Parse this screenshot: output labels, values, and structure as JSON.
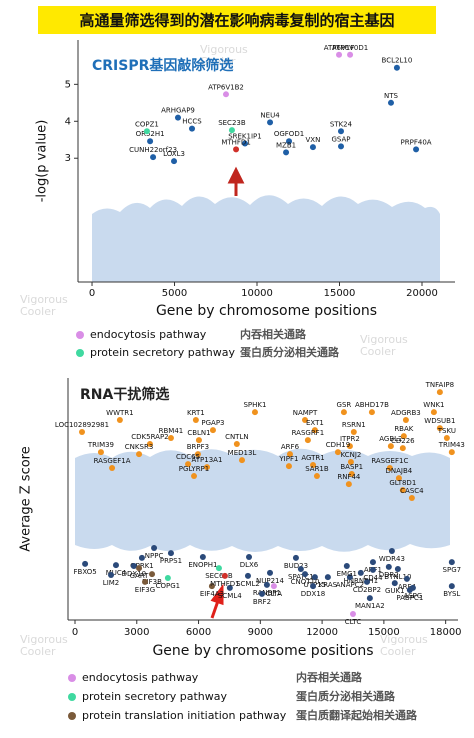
{
  "title": "高通量筛选得到的潜在影响病毒复制的宿主基因",
  "watermark": [
    "Vigorous",
    "Cooler"
  ],
  "chart_data": [
    {
      "type": "scatter",
      "subtitle": "CRISPR基因敲除筛选",
      "x_label": "Gene by chromosome positions",
      "y_label": "-log(p value)",
      "xlim": [
        -850,
        22000
      ],
      "ylim": [
        -0.35,
        6.2
      ],
      "xticks": [
        0,
        5000,
        10000,
        15000,
        20000
      ],
      "yticks": [
        3,
        4,
        5
      ],
      "background_color": "#c9daee",
      "series": [
        {
          "color": "#1f5fa6",
          "labels": [
            "BCL2L10",
            "NTS",
            "NEU4",
            "ARHGAP9",
            "HCCS",
            "OR52H1",
            "SREK1IP1",
            "OGFOD1",
            "STK24",
            "MZB1",
            "VXN",
            "GSAP",
            "CUNH22orf23",
            "LOXL3",
            "PRPF40A"
          ],
          "x": [
            18480,
            18120,
            10790,
            5210,
            6060,
            3520,
            9270,
            11940,
            15090,
            11760,
            13390,
            15090,
            3700,
            4970,
            19640
          ],
          "values": [
            5.45,
            4.5,
            3.97,
            4.1,
            3.8,
            3.46,
            3.4,
            3.46,
            3.73,
            3.16,
            3.3,
            3.32,
            3.03,
            2.92,
            3.24
          ]
        },
        {
          "name": "endocytosis pathway",
          "name_zh": "内吞相关通路",
          "color": "#d98ee6",
          "labels": [
            "ATP6V1F",
            "ATP6V0D1",
            "ATP6V1B2"
          ],
          "x": [
            14970,
            15640,
            8120
          ],
          "values": [
            5.8,
            5.8,
            4.73
          ]
        },
        {
          "name": "protein secretory pathway",
          "name_zh": "蛋白质分泌相关通路",
          "color": "#3fd9a0",
          "labels": [
            "COPZ1",
            "SEC23B"
          ],
          "x": [
            3330,
            8480
          ],
          "values": [
            3.73,
            3.76
          ]
        },
        {
          "color": "#d0302a",
          "labels": [
            "MTHFD1"
          ],
          "x": [
            8730
          ],
          "values": [
            3.24
          ]
        }
      ]
    },
    {
      "type": "scatter",
      "subtitle": "RNA干扰筛选",
      "x_label": "Gene by chromosome positions",
      "y_label": "Average Z score",
      "xlim": [
        -340,
        18600
      ],
      "ylim": [
        -4,
        4.07
      ],
      "xticks": [
        0,
        3000,
        6000,
        9000,
        12000,
        15000,
        18000
      ],
      "background_color": "#c9daee",
      "series": [
        {
          "color": "#f0921e",
          "labels": [
            "TNFAIP8",
            "ABHD17B",
            "WNK1",
            "GSR",
            "KRT1",
            "SPHK1",
            "NAMPT",
            "LOC102892981",
            "WWTR1",
            "PGAP3",
            "EXT1",
            "RSRN1",
            "ADGRB3",
            "CBLN1",
            "RBM41",
            "CDK5RAP2",
            "RASGRF1",
            "CNTLN",
            "TRIM39",
            "ITPR2",
            "AGBL2",
            "WDSUB1",
            "TSKU",
            "BRPF3",
            "CNKSR3",
            "ARF6",
            "CDH19",
            "RBAK",
            "CD226",
            "MED13L",
            "CDC65",
            "ATP13A1",
            "RASGEF1A",
            "YIPF1",
            "AGTR1",
            "PGLYRP1",
            "SAR1B",
            "KCNJ2",
            "BASP1",
            "RASGEF1C",
            "DNAJB4",
            "TRIM43",
            "GLT8D1",
            "CASC4",
            "RNF44"
          ],
          "x": [
            17720,
            14420,
            17430,
            13060,
            5870,
            8740,
            11170,
            340,
            2180,
            6700,
            11650,
            13540,
            16070,
            6020,
            4660,
            3640,
            11310,
            7860,
            1260,
            13350,
            15340,
            17720,
            18060,
            5970,
            3110,
            10440,
            12770,
            15970,
            15920,
            8110,
            5490,
            6410,
            1800,
            10390,
            11560,
            5780,
            11750,
            13400,
            13440,
            15290,
            15730,
            18300,
            15920,
            16360,
            13300
          ],
          "values": [
            3.6,
            2.93,
            2.93,
            2.93,
            2.67,
            2.93,
            2.67,
            2.27,
            2.67,
            2.33,
            2.33,
            2.27,
            2.67,
            2.0,
            2.07,
            1.87,
            2.0,
            1.87,
            1.6,
            1.8,
            1.8,
            2.4,
            2.07,
            1.53,
            1.53,
            1.53,
            1.6,
            2.13,
            1.73,
            1.33,
            1.2,
            1.1,
            1.07,
            1.13,
            1.17,
            0.8,
            0.8,
            1.27,
            0.87,
            1.07,
            0.73,
            1.6,
            0.33,
            0.07,
            0.53
          ]
        },
        {
          "color": "#2b4a7a",
          "labels": [
            "WDR43",
            "BUD23",
            "ARF1",
            "BTNL10",
            "SPATC1",
            "NPPC",
            "PRPS1",
            "OPRK1",
            "NUP214",
            "UTP15",
            "HNRNPH1",
            "ENOPH1",
            "MUC4",
            "ARF4",
            "SPG7",
            "DLX6",
            "RANBP1",
            "CD2BP2",
            "CD44",
            "FBXO5",
            "DDX10",
            "LIM2",
            "SCML2",
            "CNOT10",
            "KRAS",
            "SCML4",
            "BRF2",
            "DDX18",
            "ANAPC2",
            "EMG1",
            "DDR2",
            "ASPG",
            "GUK1",
            "BYSL",
            "PABPC1",
            "MAN1A2"
          ],
          "x": [
            15390,
            10730,
            14470,
            15680,
            10970,
            3840,
            4660,
            3250,
            9470,
            11650,
            13880,
            6210,
            1990,
            16120,
            18300,
            8450,
            9320,
            14180,
            14470,
            490,
            2860,
            1750,
            8400,
            11170,
            12280,
            7520,
            9080,
            11560,
            13350,
            13200,
            15240,
            16410,
            15530,
            18300,
            16260,
            14320
          ],
          "values": [
            -1.7,
            -1.93,
            -2.07,
            -2.3,
            -2.3,
            -1.6,
            -1.77,
            -1.93,
            -2.43,
            -2.57,
            -2.43,
            -1.9,
            -2.17,
            -2.63,
            -2.07,
            -1.9,
            -2.83,
            -2.73,
            -2.33,
            -2.13,
            -2.2,
            -2.5,
            -2.53,
            -2.47,
            -2.57,
            -2.93,
            -3.13,
            -2.87,
            -2.57,
            -2.2,
            -2.23,
            -2.93,
            -2.77,
            -2.87,
            -3.0,
            -3.27
          ]
        },
        {
          "name": "endocytosis pathway",
          "name_zh": "内吞相关通路",
          "color": "#d98ee6",
          "labels": [
            "CLTA",
            "CLTC"
          ],
          "x": [
            9660,
            13500
          ],
          "values": [
            -2.87,
            -3.8
          ]
        },
        {
          "name": "protein secretory pathway",
          "name_zh": "蛋白质分泌相关通路",
          "color": "#3fd9a0",
          "labels": [
            "SEC61B",
            "COPG1"
          ],
          "x": [
            6990,
            4510
          ],
          "values": [
            -2.27,
            -2.6
          ]
        },
        {
          "name": "protein translation initiation pathway",
          "name_zh": "蛋白质翻译起始相关通路",
          "color": "#7a5a3a",
          "labels": [
            "GART",
            "EIF3B",
            "EIF3G",
            "EIF4A3"
          ],
          "x": [
            3110,
            3740,
            3400,
            6650
          ],
          "values": [
            -2.27,
            -2.47,
            -2.73,
            -2.87
          ]
        },
        {
          "color": "#d0302a",
          "labels": [
            "MTHFD1"
          ],
          "x": [
            7280
          ],
          "values": [
            -2.53
          ]
        }
      ]
    }
  ]
}
